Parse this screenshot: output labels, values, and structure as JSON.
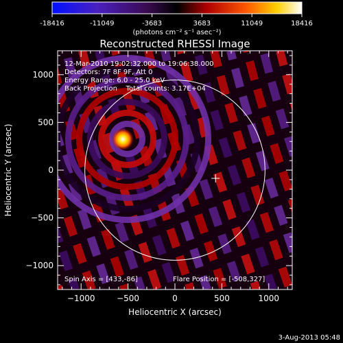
{
  "colorbar": {
    "ticks": [
      "-18416",
      "-11049",
      "-3683",
      "3683",
      "11049",
      "18416"
    ],
    "units": "(photons cm⁻² s⁻¹ asec⁻²)"
  },
  "title": "Reconstructed RHESSI Image",
  "info": {
    "line1": "12-Mar-2010 19:02:32.000 to 19:06:38.000",
    "line2": "Detectors: 7F 8F 9F, Att 0",
    "line3": "Energy Range: 6.0 - 25.0 keV",
    "line4": "Back Projection    Total counts: 3.17E+04"
  },
  "footer_left": "Spin Axis = [433,-86]",
  "footer_right": "Flare Position = [-508,327]",
  "datestamp": "3-Aug-2013 05:48",
  "chart_data": {
    "type": "heatmap",
    "title": "Reconstructed RHESSI Image",
    "xlabel": "Heliocentric X (arcsec)",
    "ylabel": "Heliocentric Y (arcsec)",
    "xlim": [
      -1250,
      1250
    ],
    "ylim": [
      -1250,
      1250
    ],
    "x_ticks": [
      -1000,
      -500,
      0,
      500,
      1000
    ],
    "y_ticks": [
      -1000,
      -500,
      0,
      500,
      1000
    ],
    "colorbar_range": [
      -18416,
      18416
    ],
    "colormap": [
      "#0000ff",
      "#5a1ea0",
      "#2a0030",
      "#000000",
      "#cc0000",
      "#ff7a00",
      "#ffe000",
      "#ffffff"
    ],
    "flare_position": [
      -508,
      327
    ],
    "spin_axis": [
      433,
      -86
    ],
    "solar_disk": {
      "center": [
        0,
        0
      ],
      "radius": 960,
      "color": "#ffffff"
    }
  }
}
